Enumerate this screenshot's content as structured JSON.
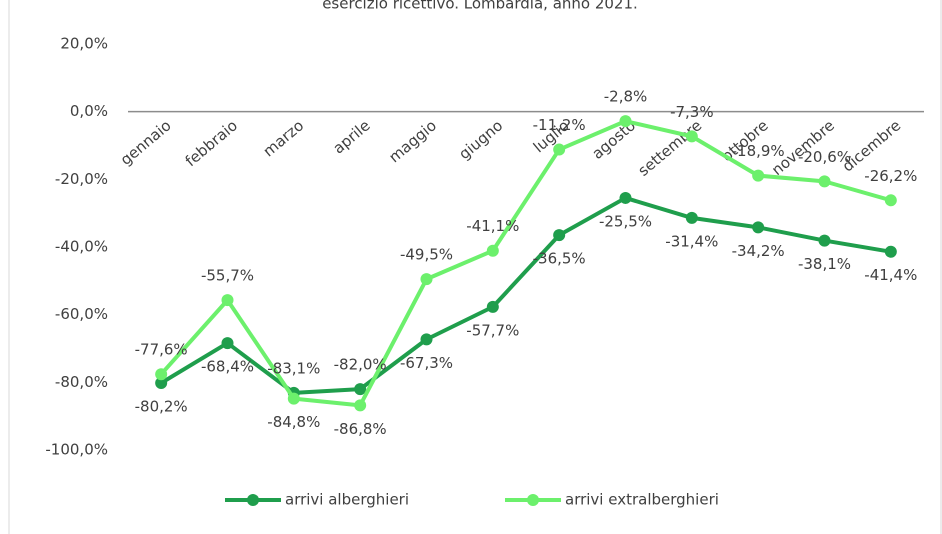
{
  "chart_data": {
    "type": "line",
    "title": "esercizio ricettivo. Lombardia, anno 2021.",
    "categories": [
      "gennaio",
      "febbraio",
      "marzo",
      "aprile",
      "maggio",
      "giugno",
      "luglio",
      "agosto",
      "settembre",
      "ottobre",
      "novembre",
      "dicembre"
    ],
    "series": [
      {
        "name": "arrivi alberghieri",
        "color": "#1f9e4c",
        "values": [
          -80.2,
          -68.4,
          -83.1,
          -82.0,
          -67.3,
          -57.7,
          -36.5,
          -25.5,
          -31.4,
          -34.2,
          -38.1,
          -41.4
        ],
        "value_labels": [
          "-80,2%",
          "-68,4%",
          "-83,1%",
          "-82,0%",
          "-67,3%",
          "-57,7%",
          "-36,5%",
          "-25,5%",
          "-31,4%",
          "-34,2%",
          "-38,1%",
          "-41,4%"
        ]
      },
      {
        "name": "arrivi extralberghieri",
        "color": "#6cf06c",
        "values": [
          -77.6,
          -55.7,
          -84.8,
          -86.8,
          -49.5,
          -41.1,
          -11.2,
          -2.8,
          -7.3,
          -18.9,
          -20.6,
          -26.2
        ],
        "value_labels": [
          "-77,6%",
          "-55,7%",
          "-84,8%",
          "-86,8%",
          "-49,5%",
          "-41,1%",
          "-11,2%",
          "-2,8%",
          "-7,3%",
          "-18,9%",
          "-20,6%",
          "-26,2%"
        ]
      }
    ],
    "ylim": [
      -100,
      20
    ],
    "yticks": [
      {
        "value": 20,
        "label": "20,0%"
      },
      {
        "value": 0,
        "label": "0,0%"
      },
      {
        "value": -20,
        "label": "-20,0%"
      },
      {
        "value": -40,
        "label": "-40,0%"
      },
      {
        "value": -60,
        "label": "-60,0%"
      },
      {
        "value": -80,
        "label": "-80,0%"
      },
      {
        "value": -100,
        "label": "-100,0%"
      }
    ],
    "legend": "bottom"
  }
}
